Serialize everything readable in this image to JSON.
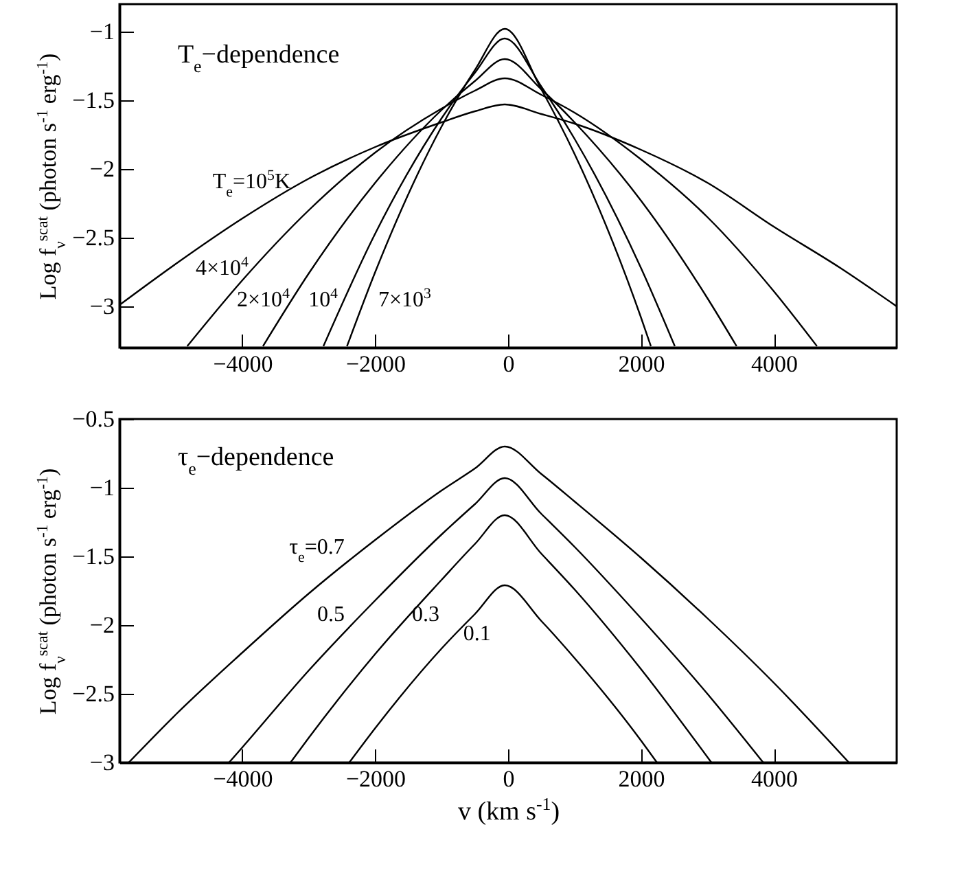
{
  "chart_data": [
    {
      "type": "line",
      "title": "T$_{e}$−dependence",
      "ylabel": "Log f$_{ν}$$^{scat}$ (photon s$^{-1}$ erg$^{-1}$)",
      "xlim": [
        -5850,
        5850
      ],
      "xticks": [
        -4000,
        -2000,
        0,
        2000,
        4000
      ],
      "ylim": [
        -3.3,
        -0.8
      ],
      "yticks": [
        -3,
        -2.5,
        -2,
        -1.5,
        -1
      ],
      "series": [
        {
          "name": "T$_{e}$=10$^{5}$K",
          "color": "#000000",
          "x": [
            -5850,
            -5000,
            -4000,
            -3000,
            -2000,
            -1000,
            -500,
            -50,
            500,
            1000,
            2000,
            3000,
            4000,
            5000,
            5850
          ],
          "values": [
            -2.99,
            -2.69,
            -2.36,
            -2.07,
            -1.84,
            -1.66,
            -1.58,
            -1.53,
            -1.6,
            -1.67,
            -1.86,
            -2.1,
            -2.42,
            -2.72,
            -3.0
          ]
        },
        {
          "name": "4×10$^{4}$",
          "color": "#000000",
          "x": [
            -4830,
            -4000,
            -3000,
            -2000,
            -1000,
            -500,
            -50,
            500,
            1000,
            2000,
            3000,
            4000,
            4650
          ],
          "values": [
            -3.29,
            -2.81,
            -2.3,
            -1.88,
            -1.56,
            -1.43,
            -1.34,
            -1.46,
            -1.59,
            -1.93,
            -2.35,
            -2.89,
            -3.29
          ]
        },
        {
          "name": "2×10$^{4}$",
          "color": "#000000",
          "x": [
            -3690,
            -3000,
            -2000,
            -1000,
            -500,
            -50,
            500,
            1000,
            2000,
            3000,
            3440
          ],
          "values": [
            -3.29,
            -2.76,
            -2.1,
            -1.57,
            -1.36,
            -1.2,
            -1.42,
            -1.66,
            -2.23,
            -2.94,
            -3.29
          ]
        },
        {
          "name": "10$^{4}$",
          "color": "#000000",
          "x": [
            -2780,
            -2000,
            -1000,
            -500,
            -50,
            500,
            1000,
            2000,
            2510
          ],
          "values": [
            -3.29,
            -2.47,
            -1.63,
            -1.3,
            -1.05,
            -1.4,
            -1.78,
            -2.72,
            -3.29
          ]
        },
        {
          "name": "7×10$^{3}$",
          "color": "#000000",
          "x": [
            -2425,
            -2000,
            -1000,
            -500,
            -50,
            500,
            1000,
            2000,
            2150
          ],
          "values": [
            -3.29,
            -2.75,
            -1.69,
            -1.28,
            -0.98,
            -1.42,
            -1.89,
            -3.08,
            -3.29
          ]
        }
      ]
    },
    {
      "type": "line",
      "title": "τ$_{e}$−dependence",
      "xlabel": "v (km s$^{-1}$)",
      "ylabel": "Log f$_{ν}$$^{scat}$ (photon s$^{-1}$ erg$^{-1}$)",
      "xlim": [
        -5850,
        5850
      ],
      "xticks": [
        -4000,
        -2000,
        0,
        2000,
        4000
      ],
      "ylim": [
        -3,
        -0.5
      ],
      "yticks": [
        -3,
        -2.5,
        -2,
        -1.5,
        -1,
        -0.5
      ],
      "series": [
        {
          "name": "τ$_{e}$=0.7",
          "color": "#000000",
          "x": [
            -5710,
            -5000,
            -4000,
            -3000,
            -2000,
            -1000,
            -500,
            -50,
            500,
            1000,
            2000,
            3000,
            4000,
            5130
          ],
          "values": [
            -3,
            -2.65,
            -2.2,
            -1.77,
            -1.38,
            -1.02,
            -0.86,
            -0.7,
            -0.9,
            -1.1,
            -1.51,
            -1.95,
            -2.42,
            -3
          ]
        },
        {
          "name": "0.5",
          "color": "#000000",
          "x": [
            -4200,
            -4000,
            -3000,
            -2000,
            -1000,
            -500,
            -50,
            500,
            1000,
            2000,
            3000,
            3840
          ],
          "values": [
            -3,
            -2.89,
            -2.33,
            -1.82,
            -1.34,
            -1.12,
            -0.93,
            -1.19,
            -1.43,
            -1.95,
            -2.5,
            -3
          ]
        },
        {
          "name": "0.3",
          "color": "#000000",
          "x": [
            -3275,
            -3000,
            -2000,
            -1000,
            -500,
            -50,
            500,
            1000,
            2000,
            3060
          ],
          "values": [
            -3,
            -2.82,
            -2.21,
            -1.67,
            -1.41,
            -1.2,
            -1.48,
            -1.74,
            -2.32,
            -3
          ]
        },
        {
          "name": "0.1",
          "color": "#000000",
          "x": [
            -2390,
            -2000,
            -1000,
            -500,
            -50,
            500,
            1000,
            2000,
            2240
          ],
          "values": [
            -3,
            -2.75,
            -2.17,
            -1.92,
            -1.71,
            -1.97,
            -2.24,
            -2.84,
            -3
          ]
        }
      ]
    }
  ]
}
